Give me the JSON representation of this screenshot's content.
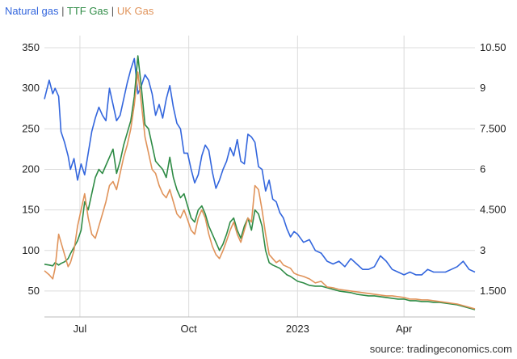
{
  "legend": {
    "items": [
      {
        "label": "Natural gas",
        "color": "#3366dd"
      },
      {
        "label": "TTF Gas",
        "color": "#2e8b45"
      },
      {
        "label": "UK Gas",
        "color": "#e0935a"
      }
    ],
    "separator": "|"
  },
  "source": "source: tradingeconomics.com",
  "chart_data": {
    "type": "line",
    "x_ticks": [
      "Jul",
      "Oct",
      "2023",
      "Apr"
    ],
    "x_tick_dates": [
      "2022-07-01",
      "2022-10-01",
      "2023-01-01",
      "2023-04-01"
    ],
    "xlim": [
      "2022-06-01",
      "2023-05-31"
    ],
    "left_axis": {
      "ticks": [
        50,
        100,
        150,
        200,
        250,
        300,
        350
      ],
      "ylim": [
        18,
        365
      ]
    },
    "right_axis": {
      "ticks": [
        "1.500",
        "3",
        "4.500",
        "6",
        "7.500",
        "9",
        "10.50"
      ],
      "values": [
        1.5,
        3,
        4.5,
        6,
        7.5,
        9,
        10.5
      ]
    },
    "grid": true,
    "series": [
      {
        "name": "Natural gas",
        "axis": "right",
        "color": "#3366dd",
        "x": [
          "2022-06-01",
          "2022-06-05",
          "2022-06-08",
          "2022-06-10",
          "2022-06-13",
          "2022-06-15",
          "2022-06-18",
          "2022-06-21",
          "2022-06-23",
          "2022-06-26",
          "2022-06-29",
          "2022-07-02",
          "2022-07-05",
          "2022-07-08",
          "2022-07-11",
          "2022-07-14",
          "2022-07-17",
          "2022-07-20",
          "2022-07-23",
          "2022-07-26",
          "2022-07-29",
          "2022-08-01",
          "2022-08-04",
          "2022-08-07",
          "2022-08-10",
          "2022-08-13",
          "2022-08-16",
          "2022-08-19",
          "2022-08-22",
          "2022-08-25",
          "2022-08-28",
          "2022-08-31",
          "2022-09-03",
          "2022-09-06",
          "2022-09-09",
          "2022-09-12",
          "2022-09-15",
          "2022-09-18",
          "2022-09-21",
          "2022-09-24",
          "2022-09-27",
          "2022-09-30",
          "2022-10-03",
          "2022-10-06",
          "2022-10-09",
          "2022-10-12",
          "2022-10-15",
          "2022-10-18",
          "2022-10-21",
          "2022-10-24",
          "2022-10-27",
          "2022-10-30",
          "2022-11-02",
          "2022-11-05",
          "2022-11-08",
          "2022-11-11",
          "2022-11-14",
          "2022-11-17",
          "2022-11-20",
          "2022-11-23",
          "2022-11-26",
          "2022-11-29",
          "2022-12-02",
          "2022-12-05",
          "2022-12-08",
          "2022-12-11",
          "2022-12-14",
          "2022-12-17",
          "2022-12-20",
          "2022-12-23",
          "2022-12-26",
          "2022-12-29",
          "2023-01-01",
          "2023-01-06",
          "2023-01-11",
          "2023-01-16",
          "2023-01-21",
          "2023-01-26",
          "2023-01-31",
          "2023-02-05",
          "2023-02-10",
          "2023-02-15",
          "2023-02-20",
          "2023-02-25",
          "2023-03-02",
          "2023-03-07",
          "2023-03-12",
          "2023-03-17",
          "2023-03-22",
          "2023-03-27",
          "2023-04-01",
          "2023-04-06",
          "2023-04-11",
          "2023-04-16",
          "2023-04-21",
          "2023-04-26",
          "2023-05-01",
          "2023-05-06",
          "2023-05-11",
          "2023-05-16",
          "2023-05-21",
          "2023-05-26",
          "2023-05-31"
        ],
        "y": [
          8.6,
          9.3,
          8.8,
          9.0,
          8.7,
          7.4,
          7.0,
          6.5,
          6.0,
          6.4,
          5.6,
          6.2,
          5.8,
          6.6,
          7.4,
          7.9,
          8.3,
          8.0,
          7.8,
          9.0,
          8.4,
          7.8,
          8.0,
          8.6,
          9.2,
          9.7,
          10.1,
          8.8,
          9.1,
          9.5,
          9.3,
          8.8,
          8.0,
          8.4,
          7.9,
          8.6,
          9.1,
          8.3,
          7.7,
          7.5,
          6.6,
          6.6,
          6.0,
          5.5,
          5.8,
          6.5,
          6.9,
          6.7,
          5.9,
          5.3,
          5.6,
          6.0,
          6.3,
          6.8,
          6.5,
          7.1,
          6.3,
          6.2,
          7.3,
          7.2,
          7.0,
          6.1,
          6.0,
          5.2,
          5.6,
          4.9,
          4.8,
          4.4,
          4.2,
          3.8,
          3.5,
          3.7,
          3.6,
          3.3,
          3.4,
          3.0,
          2.9,
          2.6,
          2.5,
          2.6,
          2.4,
          2.7,
          2.5,
          2.3,
          2.3,
          2.4,
          2.8,
          2.6,
          2.3,
          2.2,
          2.1,
          2.2,
          2.1,
          2.1,
          2.3,
          2.2,
          2.2,
          2.2,
          2.3,
          2.4,
          2.6,
          2.3,
          2.2
        ]
      },
      {
        "name": "TTF Gas",
        "axis": "left",
        "color": "#2e8b45",
        "x": [
          "2022-06-01",
          "2022-06-05",
          "2022-06-08",
          "2022-06-10",
          "2022-06-13",
          "2022-06-15",
          "2022-06-18",
          "2022-06-21",
          "2022-06-23",
          "2022-06-26",
          "2022-06-29",
          "2022-07-02",
          "2022-07-05",
          "2022-07-08",
          "2022-07-11",
          "2022-07-14",
          "2022-07-17",
          "2022-07-20",
          "2022-07-23",
          "2022-07-26",
          "2022-07-29",
          "2022-08-01",
          "2022-08-04",
          "2022-08-07",
          "2022-08-10",
          "2022-08-13",
          "2022-08-16",
          "2022-08-19",
          "2022-08-22",
          "2022-08-25",
          "2022-08-28",
          "2022-08-31",
          "2022-09-03",
          "2022-09-06",
          "2022-09-09",
          "2022-09-12",
          "2022-09-15",
          "2022-09-18",
          "2022-09-21",
          "2022-09-24",
          "2022-09-27",
          "2022-09-30",
          "2022-10-03",
          "2022-10-06",
          "2022-10-09",
          "2022-10-12",
          "2022-10-15",
          "2022-10-18",
          "2022-10-21",
          "2022-10-24",
          "2022-10-27",
          "2022-10-30",
          "2022-11-02",
          "2022-11-05",
          "2022-11-08",
          "2022-11-11",
          "2022-11-14",
          "2022-11-17",
          "2022-11-20",
          "2022-11-23",
          "2022-11-26",
          "2022-11-29",
          "2022-12-02",
          "2022-12-05",
          "2022-12-08",
          "2022-12-11",
          "2022-12-14",
          "2022-12-17",
          "2022-12-20",
          "2022-12-23",
          "2022-12-26",
          "2022-12-29",
          "2023-01-01",
          "2023-01-06",
          "2023-01-11",
          "2023-01-16",
          "2023-01-21",
          "2023-01-26",
          "2023-01-31",
          "2023-02-05",
          "2023-02-10",
          "2023-02-15",
          "2023-02-20",
          "2023-02-25",
          "2023-03-02",
          "2023-03-07",
          "2023-03-12",
          "2023-03-17",
          "2023-03-22",
          "2023-03-27",
          "2023-04-01",
          "2023-04-06",
          "2023-04-11",
          "2023-04-16",
          "2023-04-21",
          "2023-04-26",
          "2023-05-01",
          "2023-05-06",
          "2023-05-11",
          "2023-05-16",
          "2023-05-21",
          "2023-05-26",
          "2023-05-31"
        ],
        "y": [
          83,
          82,
          81,
          85,
          82,
          84,
          86,
          90,
          96,
          104,
          112,
          125,
          160,
          150,
          170,
          190,
          200,
          195,
          205,
          215,
          225,
          195,
          210,
          230,
          245,
          260,
          290,
          340,
          300,
          255,
          250,
          230,
          210,
          205,
          200,
          190,
          215,
          190,
          175,
          165,
          170,
          155,
          140,
          135,
          150,
          155,
          145,
          130,
          120,
          110,
          100,
          108,
          120,
          135,
          140,
          125,
          115,
          130,
          140,
          125,
          150,
          145,
          130,
          100,
          85,
          82,
          80,
          78,
          74,
          70,
          68,
          65,
          62,
          60,
          57,
          56,
          56,
          54,
          52,
          50,
          49,
          48,
          46,
          45,
          44,
          44,
          43,
          42,
          41,
          40,
          40,
          38,
          38,
          37,
          37,
          36,
          36,
          35,
          34,
          33,
          31,
          29,
          27
        ]
      },
      {
        "name": "UK Gas",
        "axis": "left",
        "color": "#e0935a",
        "x": [
          "2022-06-01",
          "2022-06-05",
          "2022-06-08",
          "2022-06-10",
          "2022-06-13",
          "2022-06-15",
          "2022-06-18",
          "2022-06-21",
          "2022-06-23",
          "2022-06-26",
          "2022-06-29",
          "2022-07-02",
          "2022-07-05",
          "2022-07-08",
          "2022-07-11",
          "2022-07-14",
          "2022-07-17",
          "2022-07-20",
          "2022-07-23",
          "2022-07-26",
          "2022-07-29",
          "2022-08-01",
          "2022-08-04",
          "2022-08-07",
          "2022-08-10",
          "2022-08-13",
          "2022-08-16",
          "2022-08-19",
          "2022-08-22",
          "2022-08-25",
          "2022-08-28",
          "2022-08-31",
          "2022-09-03",
          "2022-09-06",
          "2022-09-09",
          "2022-09-12",
          "2022-09-15",
          "2022-09-18",
          "2022-09-21",
          "2022-09-24",
          "2022-09-27",
          "2022-09-30",
          "2022-10-03",
          "2022-10-06",
          "2022-10-09",
          "2022-10-12",
          "2022-10-15",
          "2022-10-18",
          "2022-10-21",
          "2022-10-24",
          "2022-10-27",
          "2022-10-30",
          "2022-11-02",
          "2022-11-05",
          "2022-11-08",
          "2022-11-11",
          "2022-11-14",
          "2022-11-17",
          "2022-11-20",
          "2022-11-23",
          "2022-11-26",
          "2022-11-29",
          "2022-12-02",
          "2022-12-05",
          "2022-12-08",
          "2022-12-11",
          "2022-12-14",
          "2022-12-17",
          "2022-12-20",
          "2022-12-23",
          "2022-12-26",
          "2022-12-29",
          "2023-01-01",
          "2023-01-06",
          "2023-01-11",
          "2023-01-16",
          "2023-01-21",
          "2023-01-26",
          "2023-01-31",
          "2023-02-05",
          "2023-02-10",
          "2023-02-15",
          "2023-02-20",
          "2023-02-25",
          "2023-03-02",
          "2023-03-07",
          "2023-03-12",
          "2023-03-17",
          "2023-03-22",
          "2023-03-27",
          "2023-04-01",
          "2023-04-06",
          "2023-04-11",
          "2023-04-16",
          "2023-04-21",
          "2023-04-26",
          "2023-05-01",
          "2023-05-06",
          "2023-05-11",
          "2023-05-16",
          "2023-05-21",
          "2023-05-26",
          "2023-05-31"
        ],
        "y": [
          75,
          70,
          65,
          78,
          120,
          110,
          95,
          80,
          85,
          100,
          130,
          150,
          170,
          140,
          120,
          115,
          130,
          145,
          160,
          180,
          185,
          175,
          195,
          215,
          230,
          250,
          280,
          320,
          280,
          240,
          220,
          200,
          195,
          180,
          170,
          165,
          175,
          160,
          145,
          140,
          150,
          138,
          125,
          120,
          140,
          150,
          140,
          120,
          105,
          95,
          90,
          100,
          112,
          125,
          135,
          120,
          110,
          125,
          140,
          135,
          180,
          175,
          150,
          120,
          95,
          90,
          85,
          88,
          82,
          80,
          78,
          72,
          70,
          68,
          65,
          60,
          62,
          55,
          54,
          52,
          51,
          50,
          49,
          48,
          47,
          46,
          45,
          44,
          44,
          43,
          42,
          40,
          40,
          39,
          39,
          38,
          37,
          36,
          35,
          34,
          32,
          30,
          28
        ]
      }
    ]
  }
}
